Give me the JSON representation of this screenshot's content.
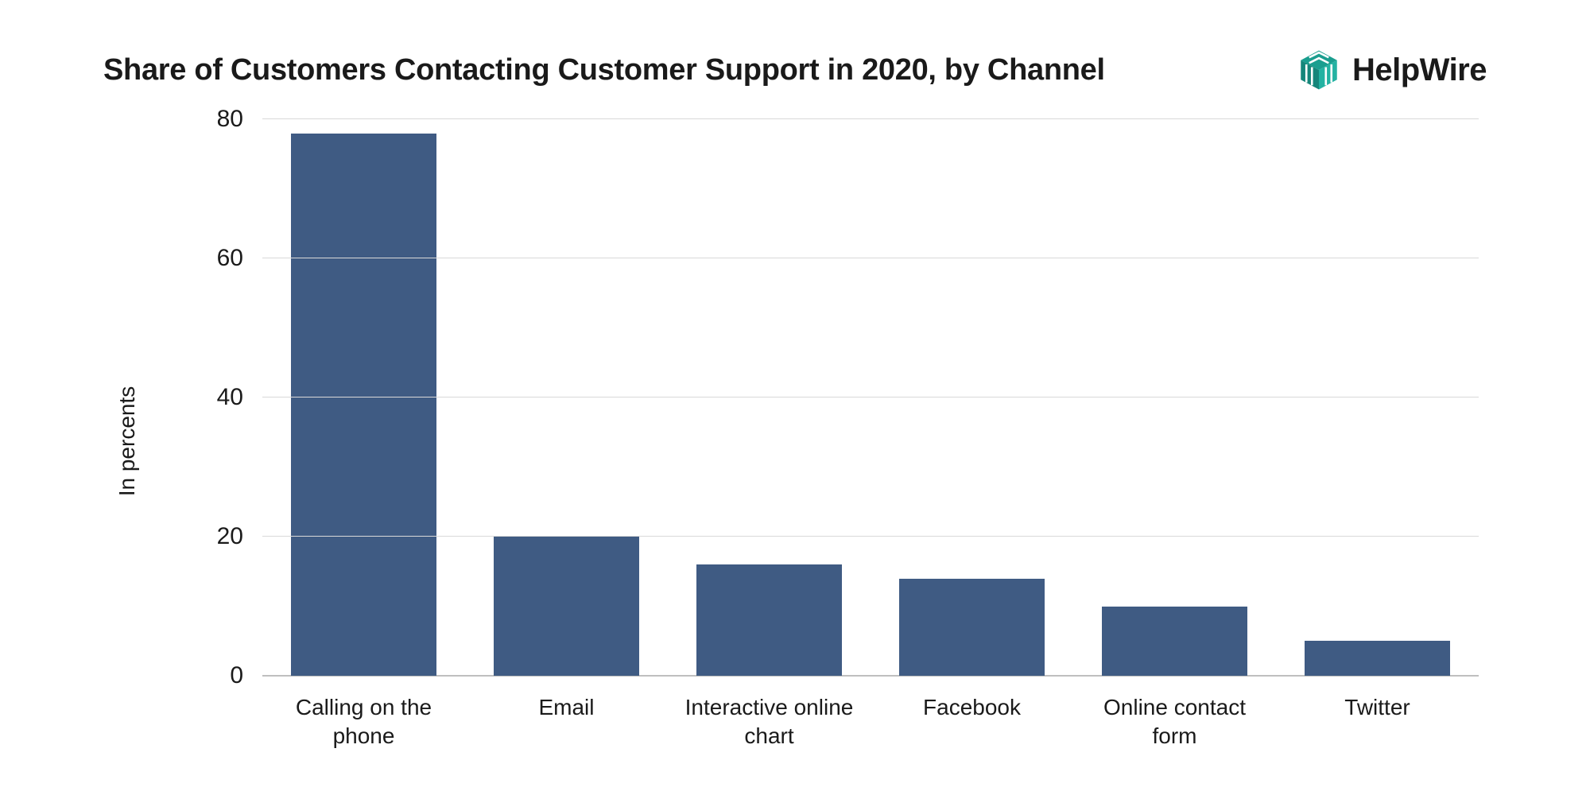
{
  "title": "Share of Customers Contacting Customer Support in 2020, by Channel",
  "brand": {
    "name": "HelpWire",
    "logo_color": "#1a9e8f"
  },
  "chart": {
    "type": "bar",
    "ylabel": "In percents",
    "ylim": [
      0,
      80
    ],
    "ytick_step": 20,
    "yticks": [
      0,
      20,
      40,
      60,
      80
    ],
    "categories": [
      "Calling on the phone",
      "Email",
      "Interactive online chart",
      "Facebook",
      "Online contact form",
      "Twitter"
    ],
    "values": [
      78,
      20,
      16,
      14,
      10,
      5
    ],
    "bar_color": "#3f5b83",
    "bar_width": 0.72,
    "background_color": "#ffffff",
    "grid_color": "#d9d9d9",
    "baseline_color": "#bfbfbf",
    "title_fontsize": 38,
    "label_fontsize": 28,
    "tick_fontsize": 30
  }
}
